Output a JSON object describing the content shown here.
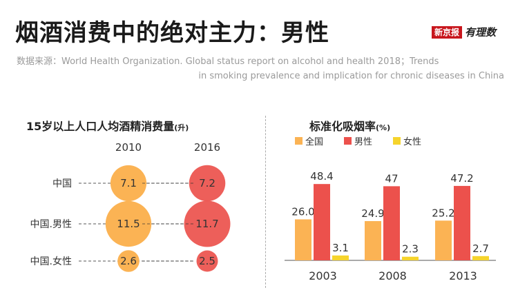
{
  "title": "烟酒消费中的绝对主力：男性",
  "brand": {
    "name": "新京报",
    "script": "有理数"
  },
  "source": {
    "line1": "数据来源：World Health Organization. Global status report on alcohol and health 2018；Trends",
    "line2": "in smoking prevalence and implication for chronic diseases in China"
  },
  "colors": {
    "orange": "#fbb354",
    "red": "#ec514c",
    "yellow": "#f6d42c",
    "overlap": "#e5382e"
  },
  "chart_data": [
    {
      "type": "bubble",
      "title": "15岁以上人口人均酒精消费量",
      "unit": "(升)",
      "columns": [
        "2010",
        "2016"
      ],
      "rows": [
        "中国",
        "中国.男性",
        "中国.女性"
      ],
      "values": [
        [
          7.1,
          7.2
        ],
        [
          11.5,
          11.7
        ],
        [
          2.6,
          2.5
        ]
      ]
    },
    {
      "type": "bar",
      "title": "标准化吸烟率",
      "unit": "(%)",
      "categories": [
        "2003",
        "2008",
        "2013"
      ],
      "series": [
        {
          "name": "全国",
          "values": [
            26.0,
            24.9,
            25.2
          ],
          "labels": [
            "26.0",
            "24.9",
            "25.2"
          ]
        },
        {
          "name": "男性",
          "values": [
            48.4,
            47,
            47.2
          ],
          "labels": [
            "48.4",
            "47",
            "47.2"
          ]
        },
        {
          "name": "女性",
          "values": [
            3.1,
            2.3,
            2.7
          ],
          "labels": [
            "3.1",
            "2.3",
            "2.7"
          ]
        }
      ],
      "ylim": [
        0,
        50
      ]
    }
  ]
}
